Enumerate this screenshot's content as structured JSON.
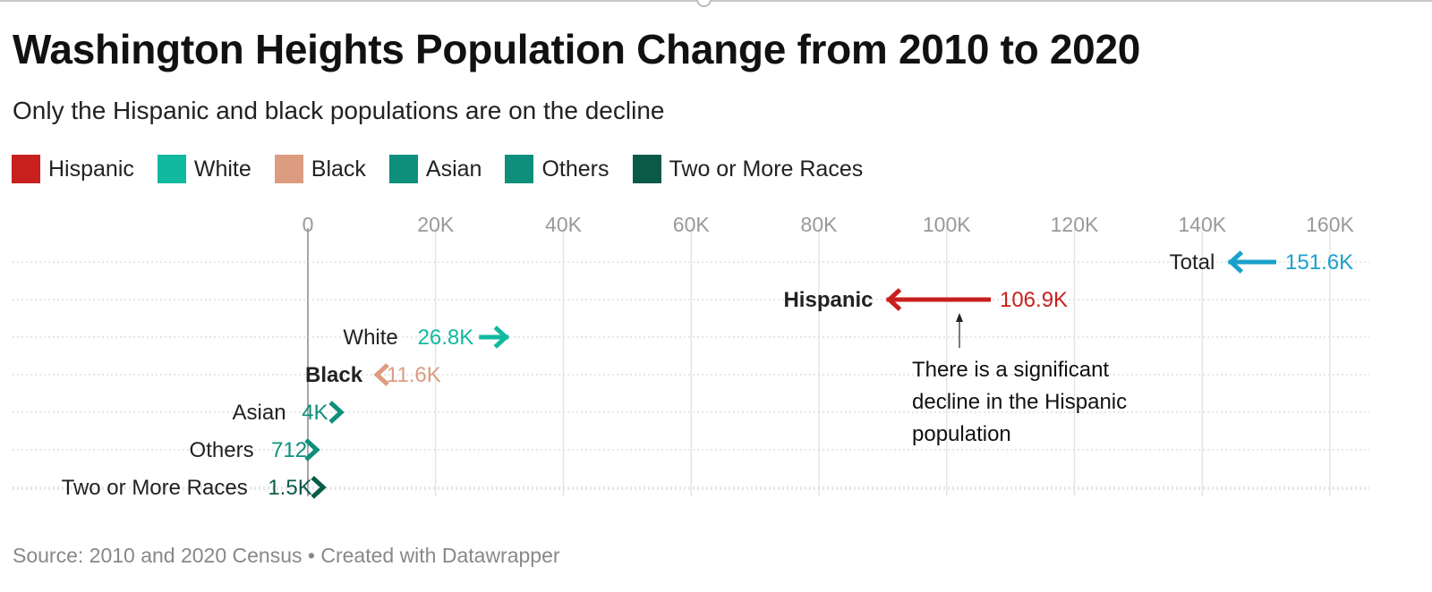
{
  "title": "Washington Heights Population Change from 2010 to 2020",
  "subtitle": "Only the Hispanic and black populations are on the decline",
  "footer": "Source: 2010 and 2020 Census • Created with Datawrapper",
  "legend": [
    {
      "label": "Hispanic",
      "color": "#c8201e"
    },
    {
      "label": "White",
      "color": "#11b9a0"
    },
    {
      "label": "Black",
      "color": "#dc9c80"
    },
    {
      "label": "Asian",
      "color": "#0e8f7c"
    },
    {
      "label": "Others",
      "color": "#0e8f7c"
    },
    {
      "label": "Two or More Races",
      "color": "#0b5a48"
    }
  ],
  "chart_data": {
    "type": "arrow",
    "title": "Washington Heights Population Change from 2010 to 2020",
    "xlim": [
      0,
      160000
    ],
    "x_ticks": [
      0,
      20000,
      40000,
      60000,
      80000,
      100000,
      120000,
      140000,
      160000
    ],
    "x_tick_labels": [
      "0",
      "20K",
      "40K",
      "60K",
      "80K",
      "100K",
      "120K",
      "140K",
      "160K"
    ],
    "grid": true,
    "rows": [
      {
        "name": "Total",
        "start_2010": 151600,
        "end_2020": 144500,
        "value_label": "151.6K",
        "color": "#1aa0cc",
        "bold": false
      },
      {
        "name": "Hispanic",
        "start_2010": 106900,
        "end_2020": 91000,
        "value_label": "106.9K",
        "color": "#c8201e",
        "bold": true
      },
      {
        "name": "White",
        "start_2010": 26800,
        "end_2020": 31000,
        "value_label": "26.8K",
        "color": "#11b9a0",
        "bold": false
      },
      {
        "name": "Black",
        "start_2010": 11600,
        "end_2020": 10800,
        "value_label": "11.6K",
        "color": "#dc9c80",
        "bold": true
      },
      {
        "name": "Asian",
        "start_2010": 4000,
        "end_2020": 5200,
        "value_label": "4K",
        "color": "#0e8f7c",
        "bold": false
      },
      {
        "name": "Others",
        "start_2010": 712,
        "end_2020": 1400,
        "value_label": "712",
        "color": "#0e8f7c",
        "bold": false
      },
      {
        "name": "Two or More Races",
        "start_2010": 1500,
        "end_2020": 2400,
        "value_label": "1.5K",
        "color": "#0b5a48",
        "bold": false
      }
    ],
    "annotation": {
      "text_lines": [
        "There is a significant",
        "decline in the Hispanic",
        "population"
      ],
      "points_to_row": "Hispanic",
      "points_to_value": 102000
    }
  }
}
